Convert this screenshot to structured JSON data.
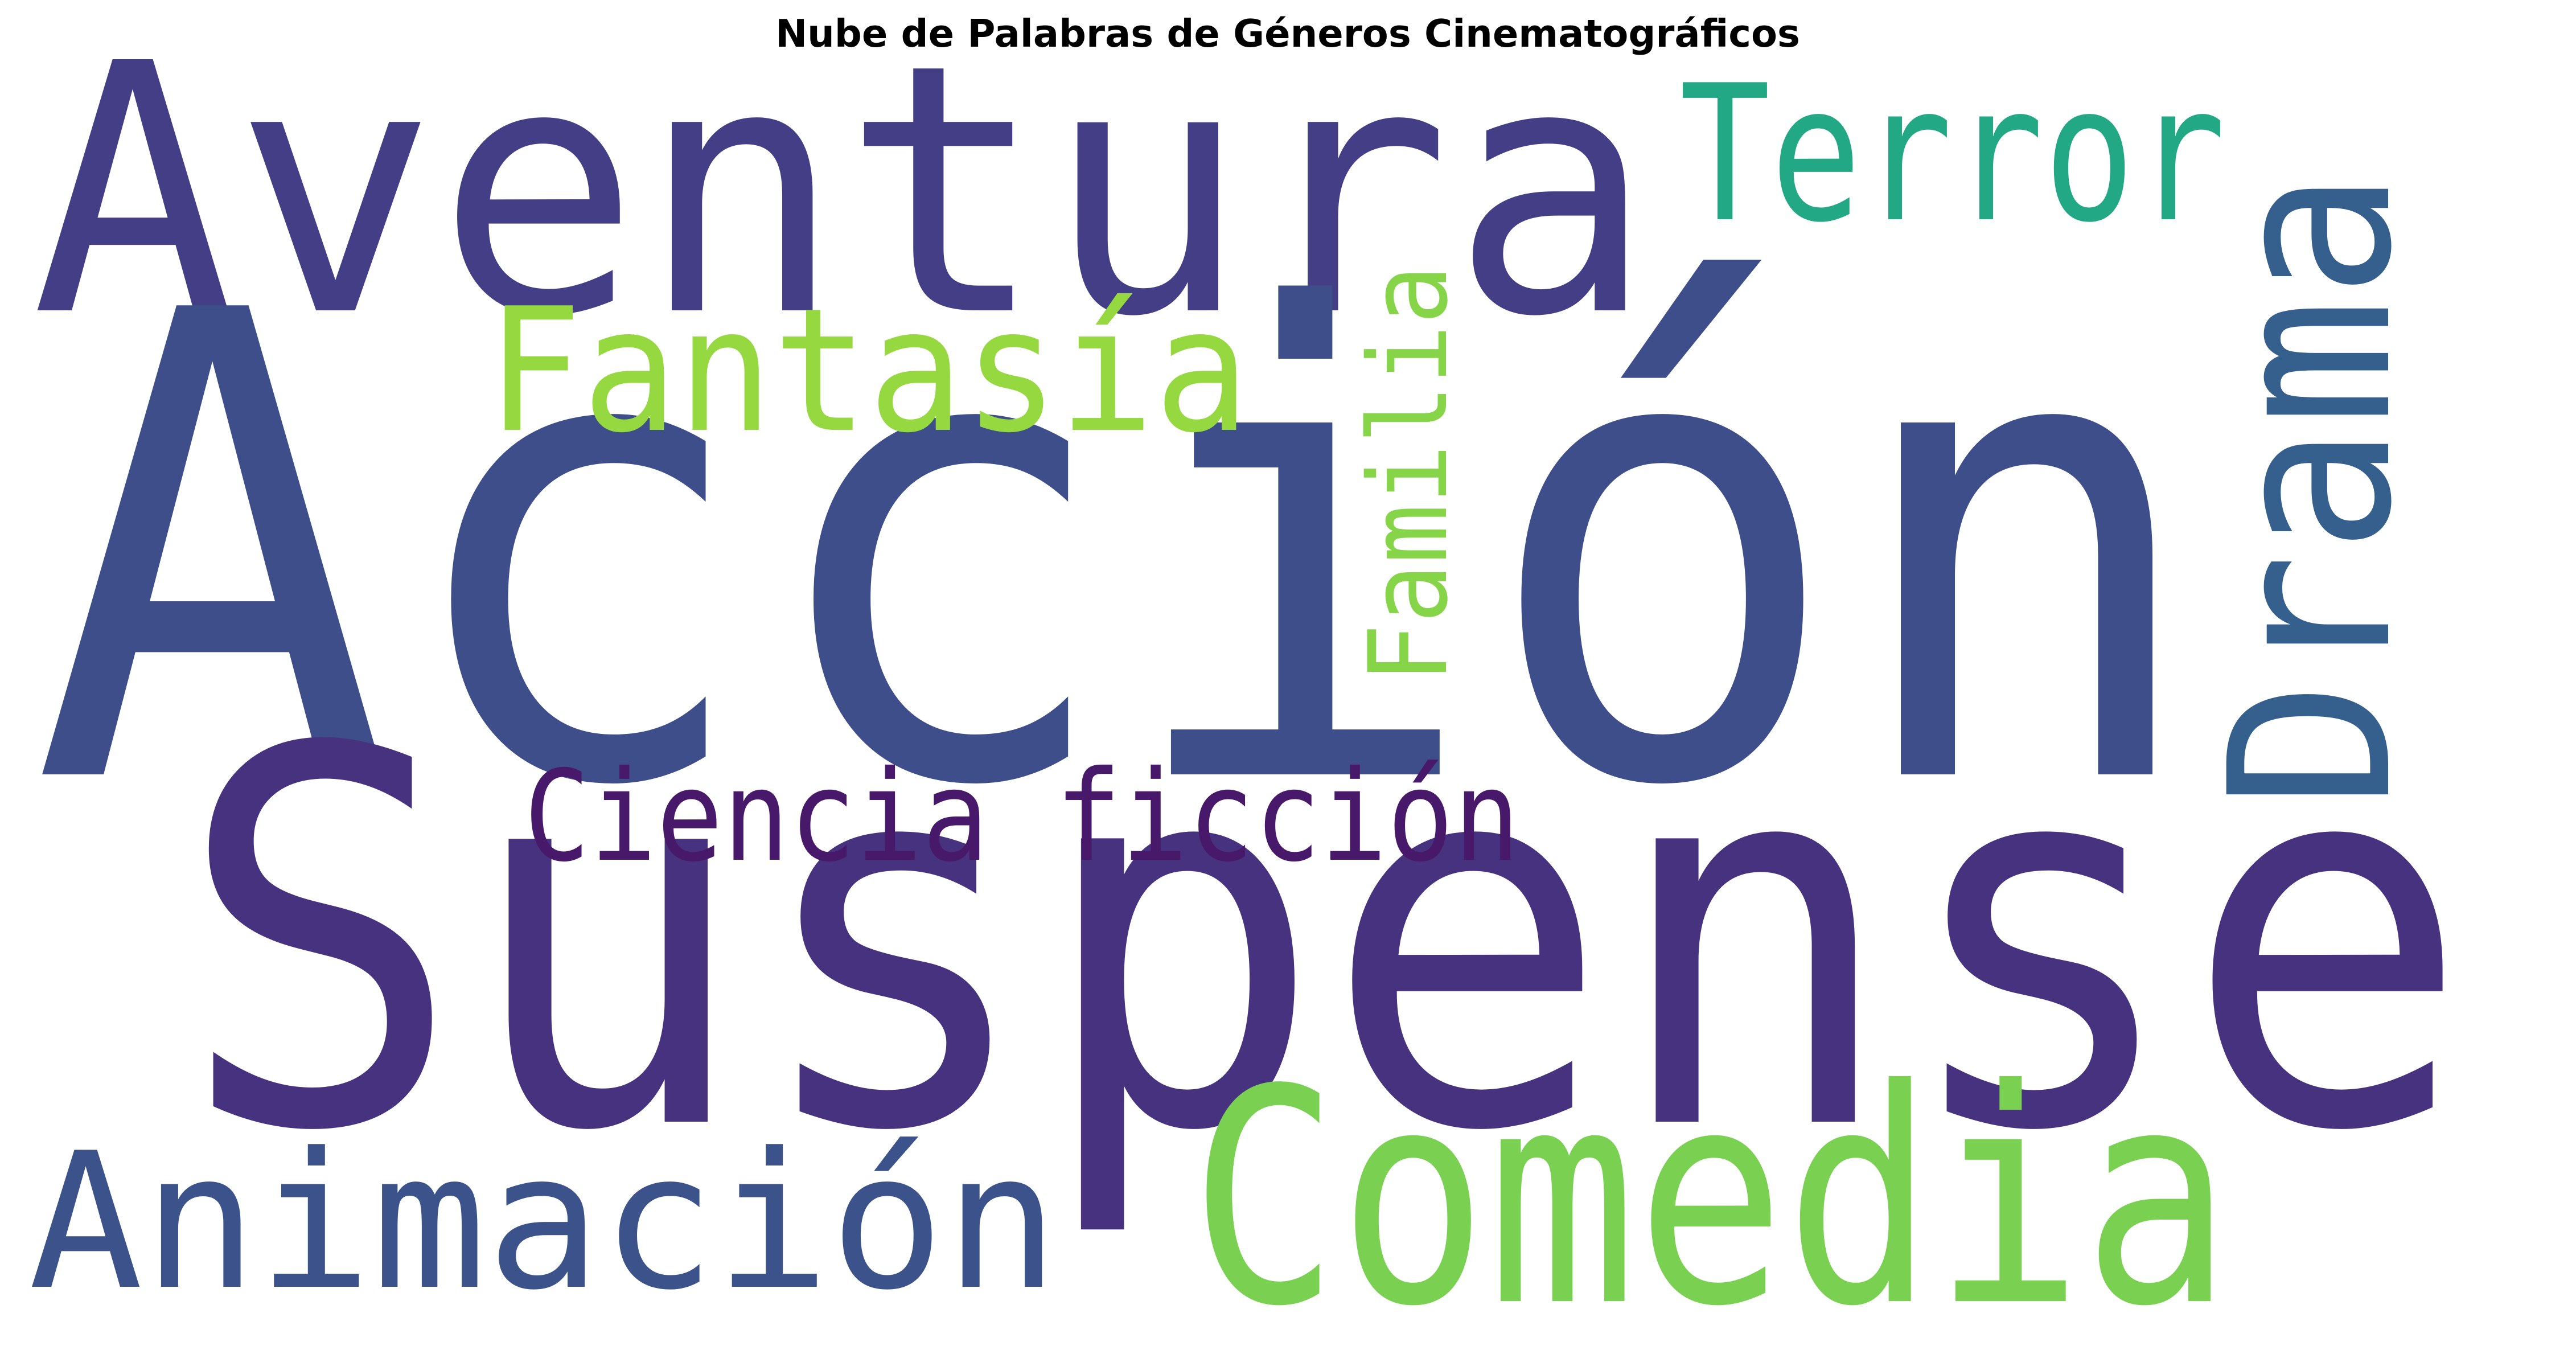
{
  "title": "Nube de Palabras de Géneros Cinematográficos",
  "words": [
    {
      "id": "accion",
      "text": "Acción",
      "color": "#3d4e8a"
    },
    {
      "id": "suspense",
      "text": "Suspense",
      "color": "#46327e"
    },
    {
      "id": "aventura",
      "text": "Aventura",
      "color": "#433e85"
    },
    {
      "id": "comedia",
      "text": "Comedia",
      "color": "#7ad151"
    },
    {
      "id": "drama",
      "text": "Drama",
      "color": "#355f8d"
    },
    {
      "id": "animacion",
      "text": "Animación",
      "color": "#3b528b"
    },
    {
      "id": "terror",
      "text": "Terror",
      "color": "#22a884"
    },
    {
      "id": "fantasia",
      "text": "Fantasía",
      "color": "#95d840"
    },
    {
      "id": "ciencia-ficcion",
      "text": "Ciencia ficción",
      "color": "#48186a"
    },
    {
      "id": "familia",
      "text": "Familia",
      "color": "#86d549"
    }
  ]
}
